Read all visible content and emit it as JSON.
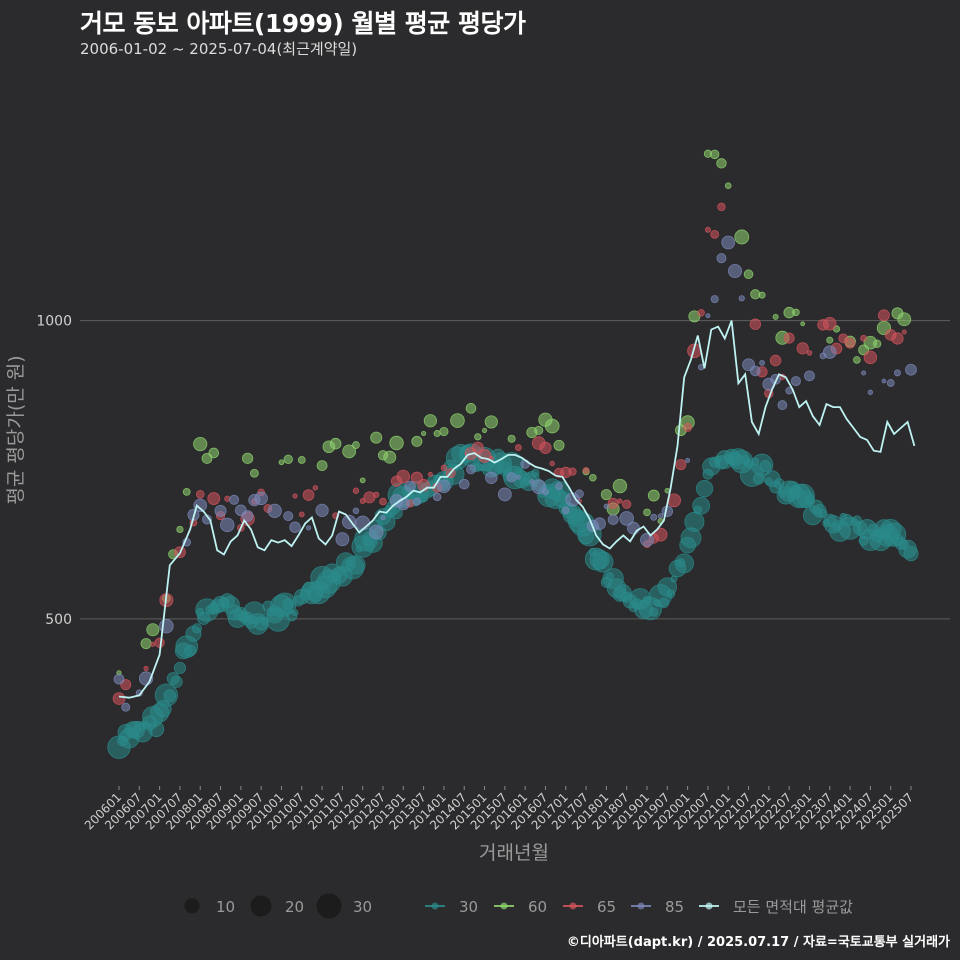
{
  "header": {
    "title": "거모 동보 아파트(1999) 월별 평균 평당가",
    "subtitle": "2006-01-02 ~ 2025-07-04(최근계약일)"
  },
  "caption": "©디아파트(dapt.kr) / 2025.07.17 / 자료=국토교통부 실거래가",
  "colors": {
    "background": "#2b2b2d",
    "grid": "#5e5e5e",
    "s30": "#2a8a8a",
    "s60": "#8fd46e",
    "s65": "#d4545d",
    "s85": "#7b88b8",
    "avg": "#bff3f3"
  },
  "chart_data": {
    "type": "scatter",
    "xlabel": "거래년월",
    "ylabel": "평균 평당가(만 원)",
    "ylim": [
      220,
      1420
    ],
    "yticks": [
      500,
      1000
    ],
    "xticks": [
      "200601",
      "200607",
      "200701",
      "200707",
      "200801",
      "200807",
      "200901",
      "200907",
      "201001",
      "201007",
      "201101",
      "201107",
      "201201",
      "201207",
      "201301",
      "201307",
      "201401",
      "201407",
      "201501",
      "201507",
      "201601",
      "201607",
      "201701",
      "201707",
      "201801",
      "201807",
      "201901",
      "201907",
      "202001",
      "202007",
      "202101",
      "202107",
      "202201",
      "202207",
      "202301",
      "202307",
      "202401",
      "202407",
      "202501",
      "202507"
    ],
    "size_legend": [
      {
        "label": "10",
        "value": 10
      },
      {
        "label": "20",
        "value": 20
      },
      {
        "label": "30",
        "value": 30
      }
    ],
    "series_legend": [
      {
        "key": "s30",
        "label": "30"
      },
      {
        "key": "s60",
        "label": "60"
      },
      {
        "key": "s65",
        "label": "65"
      },
      {
        "key": "s85",
        "label": "85"
      },
      {
        "key": "avg",
        "label": "모든 면적대 평균값"
      }
    ],
    "series": [
      {
        "name": "30",
        "key": "s30",
        "anchors": [
          [
            0,
            300
          ],
          [
            6,
            310
          ],
          [
            12,
            330
          ],
          [
            18,
            420
          ],
          [
            24,
            500
          ],
          [
            30,
            530
          ],
          [
            36,
            495
          ],
          [
            42,
            505
          ],
          [
            48,
            510
          ],
          [
            54,
            530
          ],
          [
            60,
            565
          ],
          [
            66,
            585
          ],
          [
            72,
            610
          ],
          [
            78,
            660
          ],
          [
            84,
            700
          ],
          [
            90,
            705
          ],
          [
            96,
            740
          ],
          [
            102,
            770
          ],
          [
            108,
            765
          ],
          [
            114,
            755
          ],
          [
            120,
            740
          ],
          [
            126,
            720
          ],
          [
            132,
            690
          ],
          [
            138,
            640
          ],
          [
            144,
            570
          ],
          [
            150,
            525
          ],
          [
            156,
            520
          ],
          [
            162,
            540
          ],
          [
            168,
            610
          ],
          [
            174,
            750
          ],
          [
            180,
            760
          ],
          [
            186,
            755
          ],
          [
            192,
            740
          ],
          [
            198,
            715
          ],
          [
            204,
            690
          ],
          [
            210,
            670
          ],
          [
            216,
            655
          ],
          [
            222,
            640
          ],
          [
            228,
            640
          ],
          [
            234,
            600
          ]
        ]
      },
      {
        "name": "60",
        "key": "s60",
        "anchors": [
          [
            0,
            390
          ],
          [
            6,
            420
          ],
          [
            12,
            480
          ],
          [
            18,
            650
          ],
          [
            24,
            790
          ],
          [
            30,
            760
          ],
          [
            36,
            740
          ],
          [
            42,
            760
          ],
          [
            48,
            770
          ],
          [
            54,
            780
          ],
          [
            60,
            775
          ],
          [
            66,
            770
          ],
          [
            72,
            760
          ],
          [
            78,
            790
          ],
          [
            84,
            790
          ],
          [
            90,
            800
          ],
          [
            96,
            810
          ],
          [
            102,
            830
          ],
          [
            108,
            820
          ],
          [
            114,
            800
          ],
          [
            120,
            820
          ],
          [
            126,
            810
          ],
          [
            132,
            790
          ],
          [
            138,
            770
          ],
          [
            144,
            720
          ],
          [
            150,
            700
          ],
          [
            156,
            680
          ],
          [
            162,
            700
          ],
          [
            168,
            850
          ],
          [
            174,
            1300
          ],
          [
            180,
            1250
          ],
          [
            186,
            1100
          ],
          [
            192,
            1020
          ],
          [
            198,
            990
          ],
          [
            204,
            1000
          ],
          [
            210,
            990
          ],
          [
            216,
            950
          ],
          [
            222,
            960
          ],
          [
            228,
            980
          ],
          [
            234,
            1000
          ]
        ]
      },
      {
        "name": "65",
        "key": "s65",
        "anchors": [
          [
            0,
            370
          ],
          [
            6,
            395
          ],
          [
            12,
            450
          ],
          [
            18,
            620
          ],
          [
            24,
            720
          ],
          [
            30,
            700
          ],
          [
            36,
            680
          ],
          [
            42,
            700
          ],
          [
            48,
            690
          ],
          [
            54,
            700
          ],
          [
            60,
            690
          ],
          [
            66,
            680
          ],
          [
            72,
            690
          ],
          [
            78,
            700
          ],
          [
            84,
            720
          ],
          [
            90,
            730
          ],
          [
            96,
            760
          ],
          [
            102,
            770
          ],
          [
            108,
            780
          ],
          [
            114,
            770
          ],
          [
            120,
            780
          ],
          [
            126,
            760
          ],
          [
            132,
            740
          ],
          [
            138,
            720
          ],
          [
            144,
            690
          ],
          [
            150,
            670
          ],
          [
            156,
            650
          ],
          [
            162,
            680
          ],
          [
            168,
            820
          ],
          [
            174,
            1150
          ],
          [
            180,
            1180
          ],
          [
            186,
            1020
          ],
          [
            192,
            900
          ],
          [
            198,
            950
          ],
          [
            204,
            960
          ],
          [
            210,
            970
          ],
          [
            216,
            950
          ],
          [
            222,
            960
          ],
          [
            228,
            1000
          ],
          [
            234,
            1000
          ]
        ]
      },
      {
        "name": "85",
        "key": "s85",
        "anchors": [
          [
            0,
            370
          ],
          [
            6,
            400
          ],
          [
            12,
            440
          ],
          [
            18,
            600
          ],
          [
            24,
            700
          ],
          [
            30,
            690
          ],
          [
            36,
            680
          ],
          [
            42,
            690
          ],
          [
            48,
            685
          ],
          [
            54,
            680
          ],
          [
            60,
            670
          ],
          [
            66,
            660
          ],
          [
            72,
            660
          ],
          [
            78,
            670
          ],
          [
            84,
            690
          ],
          [
            90,
            700
          ],
          [
            96,
            720
          ],
          [
            102,
            740
          ],
          [
            108,
            740
          ],
          [
            114,
            730
          ],
          [
            120,
            735
          ],
          [
            126,
            720
          ],
          [
            132,
            700
          ],
          [
            138,
            680
          ],
          [
            144,
            660
          ],
          [
            150,
            650
          ],
          [
            156,
            640
          ],
          [
            162,
            660
          ],
          [
            168,
            760
          ],
          [
            174,
            1000
          ],
          [
            180,
            1150
          ],
          [
            186,
            950
          ],
          [
            192,
            900
          ],
          [
            198,
            870
          ],
          [
            204,
            900
          ],
          [
            210,
            920
          ],
          [
            216,
            900
          ],
          [
            222,
            880
          ],
          [
            228,
            900
          ],
          [
            234,
            900
          ]
        ]
      }
    ],
    "average": {
      "name": "모든 면적대 평균값",
      "key": "avg",
      "anchors": [
        [
          0,
          370
        ],
        [
          3,
          368
        ],
        [
          6,
          372
        ],
        [
          9,
          395
        ],
        [
          12,
          440
        ],
        [
          15,
          590
        ],
        [
          18,
          610
        ],
        [
          21,
          650
        ],
        [
          23,
          690
        ],
        [
          25,
          680
        ],
        [
          27,
          665
        ],
        [
          29,
          615
        ],
        [
          31,
          608
        ],
        [
          33,
          630
        ],
        [
          35,
          640
        ],
        [
          37,
          665
        ],
        [
          39,
          650
        ],
        [
          41,
          620
        ],
        [
          43,
          615
        ],
        [
          45,
          632
        ],
        [
          47,
          628
        ],
        [
          49,
          632
        ],
        [
          51,
          622
        ],
        [
          53,
          640
        ],
        [
          55,
          660
        ],
        [
          57,
          670
        ],
        [
          59,
          635
        ],
        [
          61,
          625
        ],
        [
          63,
          640
        ],
        [
          65,
          680
        ],
        [
          67,
          675
        ],
        [
          69,
          660
        ],
        [
          71,
          645
        ],
        [
          73,
          655
        ],
        [
          75,
          665
        ],
        [
          77,
          680
        ],
        [
          79,
          678
        ],
        [
          81,
          690
        ],
        [
          83,
          698
        ],
        [
          85,
          705
        ],
        [
          87,
          715
        ],
        [
          89,
          712
        ],
        [
          91,
          720
        ],
        [
          93,
          720
        ],
        [
          95,
          738
        ],
        [
          97,
          738
        ],
        [
          99,
          752
        ],
        [
          101,
          760
        ],
        [
          103,
          775
        ],
        [
          105,
          778
        ],
        [
          107,
          770
        ],
        [
          109,
          768
        ],
        [
          111,
          762
        ],
        [
          113,
          768
        ],
        [
          115,
          775
        ],
        [
          117,
          775
        ],
        [
          119,
          770
        ],
        [
          121,
          762
        ],
        [
          123,
          755
        ],
        [
          125,
          752
        ],
        [
          127,
          748
        ],
        [
          129,
          740
        ],
        [
          131,
          738
        ],
        [
          133,
          720
        ],
        [
          135,
          700
        ],
        [
          137,
          688
        ],
        [
          139,
          668
        ],
        [
          141,
          640
        ],
        [
          143,
          625
        ],
        [
          145,
          618
        ],
        [
          147,
          630
        ],
        [
          149,
          640
        ],
        [
          151,
          630
        ],
        [
          153,
          648
        ],
        [
          155,
          655
        ],
        [
          157,
          640
        ],
        [
          159,
          650
        ],
        [
          161,
          665
        ],
        [
          163,
          720
        ],
        [
          165,
          790
        ],
        [
          167,
          905
        ],
        [
          169,
          935
        ],
        [
          171,
          975
        ],
        [
          173,
          920
        ],
        [
          175,
          985
        ],
        [
          177,
          990
        ],
        [
          179,
          970
        ],
        [
          181,
          1000
        ],
        [
          183,
          895
        ],
        [
          185,
          910
        ],
        [
          187,
          830
        ],
        [
          189,
          810
        ],
        [
          191,
          855
        ],
        [
          193,
          885
        ],
        [
          195,
          910
        ],
        [
          197,
          905
        ],
        [
          199,
          885
        ],
        [
          201,
          855
        ],
        [
          203,
          865
        ],
        [
          205,
          840
        ],
        [
          207,
          825
        ],
        [
          209,
          860
        ],
        [
          211,
          855
        ],
        [
          213,
          855
        ],
        [
          215,
          835
        ],
        [
          217,
          820
        ],
        [
          219,
          805
        ],
        [
          221,
          800
        ],
        [
          223,
          782
        ],
        [
          225,
          780
        ],
        [
          227,
          830
        ],
        [
          229,
          810
        ],
        [
          231,
          820
        ],
        [
          233,
          830
        ],
        [
          235,
          790
        ]
      ]
    }
  }
}
